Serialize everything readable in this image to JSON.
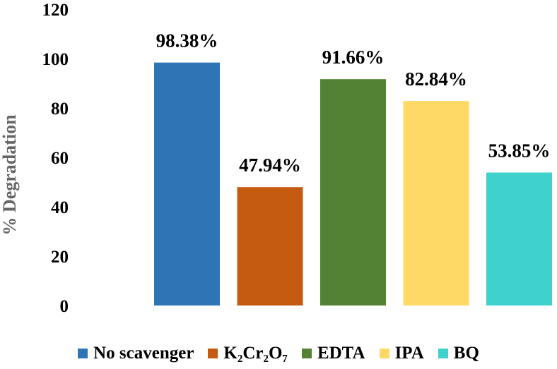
{
  "chart_data": {
    "type": "bar",
    "title": "",
    "xlabel": "",
    "ylabel": "% Degradation",
    "ylim": [
      0,
      120
    ],
    "yticks": [
      0,
      20,
      40,
      60,
      80,
      100,
      120
    ],
    "grid": false,
    "legend_position": "bottom",
    "categories": [
      "No scavenger",
      "K₂Cr₂O₇",
      "EDTA",
      "IPA",
      "BQ"
    ],
    "values": [
      98.38,
      47.94,
      91.66,
      82.84,
      53.85
    ],
    "data_labels": [
      "98.38%",
      "47.94%",
      "91.66%",
      "82.84%",
      "53.85%"
    ],
    "colors": [
      "#2e75b6",
      "#c55a11",
      "#548235",
      "#ffd966",
      "#3fd1cc"
    ]
  }
}
